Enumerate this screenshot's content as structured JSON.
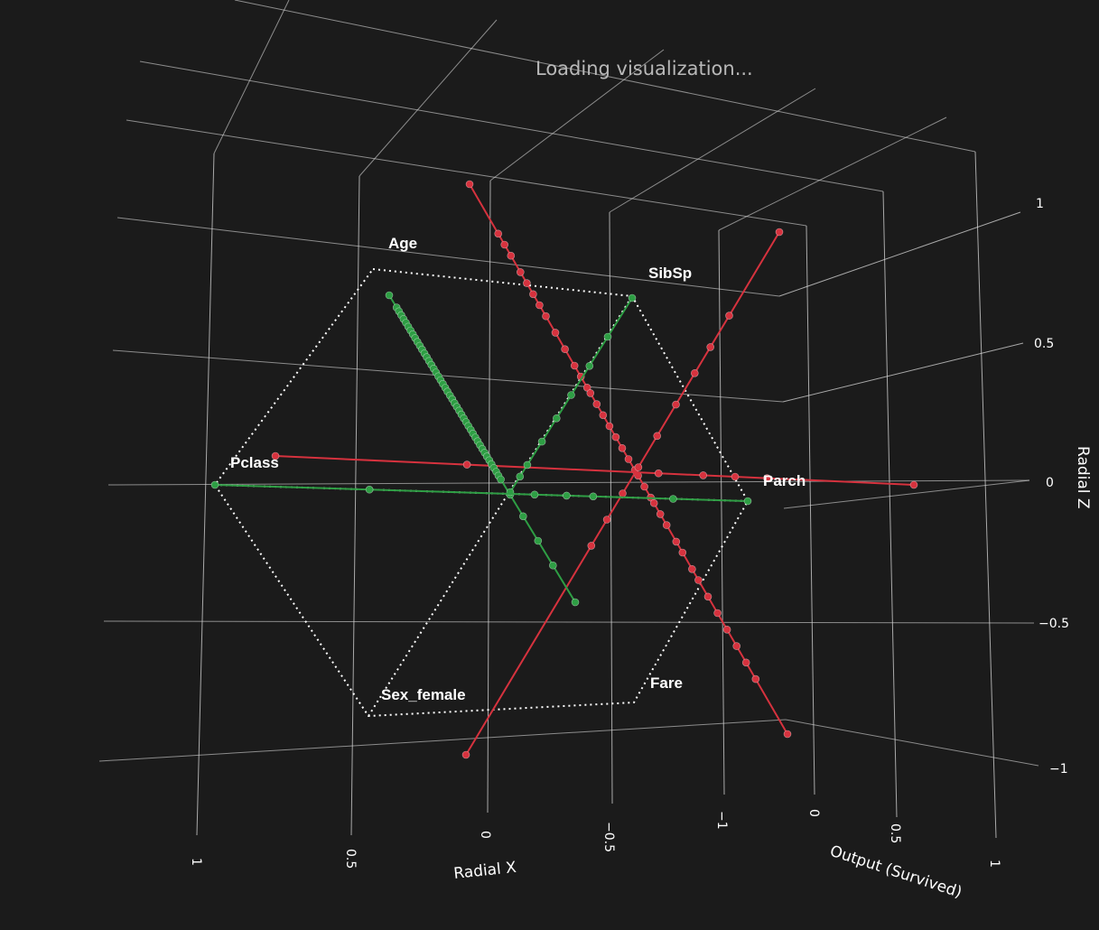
{
  "status": {
    "loading_text": "Loading visualization..."
  },
  "colors": {
    "background": "#1b1b1b",
    "grid": "#d9d9d9",
    "died": "#d6323e",
    "survived": "#2e9e44",
    "anchor_outline": "#ffffff"
  },
  "chart_data": {
    "type": "scatter3d",
    "axes": {
      "x": {
        "title": "Radial X",
        "ticks": [
          "1",
          "0.5",
          "0",
          "−0.5",
          "−1"
        ],
        "range": [
          -1,
          1
        ]
      },
      "y": {
        "title": "Output (Survived)",
        "ticks": [
          "0",
          "0.5",
          "1"
        ],
        "range": [
          0,
          1
        ]
      },
      "z": {
        "title": "Radial Z",
        "ticks": [
          "1",
          "0.5",
          "0",
          "−0.5",
          "−1"
        ],
        "range": [
          -1,
          1
        ]
      }
    },
    "anchors": [
      "Age",
      "SibSp",
      "Parch",
      "Fare",
      "Sex_female",
      "Pclass"
    ],
    "series": [
      {
        "name": "",
        "color": "#d6323e",
        "lines": 3
      },
      {
        "name": "",
        "color": "#2e9e44",
        "lines": 3
      }
    ]
  }
}
